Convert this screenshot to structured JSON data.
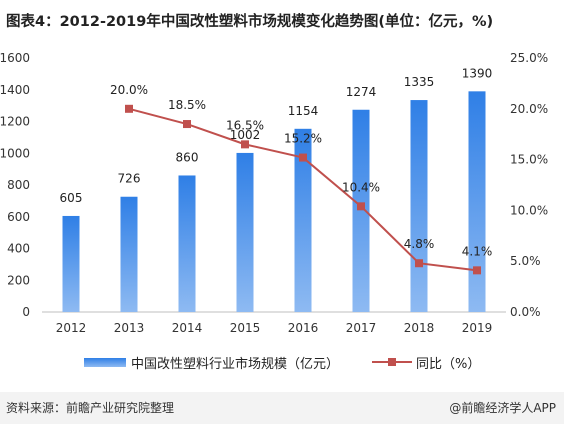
{
  "title": "图表4：2012-2019年中国改性塑料市场规模变化趋势图(单位：亿元，%)",
  "source": "资料来源：前瞻产业研究院整理",
  "brand": "@前瞻经济学人APP",
  "chart_data": {
    "type": "bar",
    "categories": [
      "2012",
      "2013",
      "2014",
      "2015",
      "2016",
      "2017",
      "2018",
      "2019"
    ],
    "series": [
      {
        "name": "中国改性塑料行业市场规模（亿元）",
        "type": "bar",
        "axis": "left",
        "values": [
          605,
          726,
          860,
          1002,
          1154,
          1274,
          1335,
          1390
        ],
        "labels": [
          "605",
          "726",
          "860",
          "1002",
          "1154",
          "1274",
          "1335",
          "1390"
        ],
        "color": "#4a8fe0"
      },
      {
        "name": "同比（%）",
        "type": "line",
        "axis": "right",
        "values": [
          null,
          20.0,
          18.5,
          16.5,
          15.2,
          10.4,
          4.8,
          4.1
        ],
        "labels": [
          "",
          "20.0%",
          "18.5%",
          "16.5%",
          "15.2%",
          "10.4%",
          "4.8%",
          "4.1%"
        ],
        "color": "#c0504d"
      }
    ],
    "y_left": {
      "min": 0,
      "max": 1600,
      "ticks": [
        "0",
        "200",
        "400",
        "600",
        "800",
        "1000",
        "1200",
        "1400",
        "1600"
      ]
    },
    "y_right": {
      "min": 0,
      "max": 25,
      "ticks": [
        "0.0%",
        "5.0%",
        "10.0%",
        "15.0%",
        "20.0%",
        "25.0%"
      ]
    },
    "grid": false,
    "legend_position": "bottom"
  }
}
